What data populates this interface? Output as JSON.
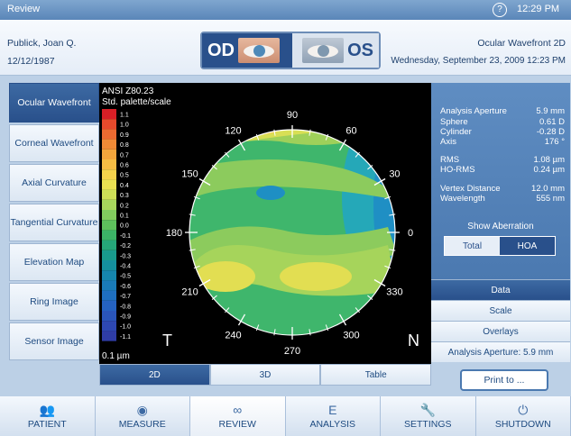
{
  "title": "Review",
  "clock": "12:29 PM",
  "patient": {
    "name": "Publick, Joan Q.",
    "dob": "12/12/1987"
  },
  "exam": {
    "title": "Ocular Wavefront 2D",
    "datetime": "Wednesday, September 23, 2009 12:23 PM"
  },
  "eye_select": {
    "od": "OD",
    "os": "OS"
  },
  "left_nav": [
    "Ocular Wavefront",
    "Corneal Wavefront",
    "Axial Curvature",
    "Tangential Curvature",
    "Elevation Map",
    "Ring Image",
    "Sensor Image"
  ],
  "map": {
    "scale_title": "ANSI Z80.23",
    "scale_subtitle": "Std. palette/scale",
    "scale_values": [
      "1.1",
      "1.0",
      "0.9",
      "0.8",
      "0.7",
      "0.6",
      "0.5",
      "0.4",
      "0.3",
      "0.2",
      "0.1",
      "0.0",
      "-0.1",
      "-0.2",
      "-0.3",
      "-0.4",
      "-0.5",
      "-0.6",
      "-0.7",
      "-0.8",
      "-0.9",
      "-1.0",
      "-1.1"
    ],
    "scale_colors": [
      "#d81f26",
      "#e64a2c",
      "#ec6a31",
      "#f08a36",
      "#f3a53c",
      "#f5bd44",
      "#f4d24c",
      "#e9df52",
      "#cddf57",
      "#a8d65c",
      "#82cb5e",
      "#5ec15c",
      "#3cb366",
      "#26a679",
      "#199a8c",
      "#15909e",
      "#1686ad",
      "#1a7bb8",
      "#1f6fbf",
      "#2562c0",
      "#2a55ba",
      "#2e48b2",
      "#2f3da6"
    ],
    "unit": "0.1 µm",
    "angles": [
      "0",
      "30",
      "60",
      "90",
      "120",
      "150",
      "180",
      "210",
      "240",
      "270",
      "300",
      "330"
    ],
    "left_marker": "T",
    "right_marker": "N"
  },
  "stats": [
    {
      "label": "Analysis Aperture",
      "value": "5.9 mm"
    },
    {
      "label": "Sphere",
      "value": "0.61 D"
    },
    {
      "label": "Cylinder",
      "value": "-0.28 D"
    },
    {
      "label": "Axis",
      "value": "176 °"
    },
    {
      "label": "RMS",
      "value": "1.08 µm"
    },
    {
      "label": "HO-RMS",
      "value": "0.24 µm"
    },
    {
      "label": "Vertex Distance",
      "value": "12.0 mm"
    },
    {
      "label": "Wavelength",
      "value": "555 nm"
    }
  ],
  "show_aberration": {
    "label": "Show Aberration",
    "total": "Total",
    "hoa": "HOA"
  },
  "data_menu": {
    "header": "Data",
    "items": [
      "Scale",
      "Overlays",
      "Analysis Aperture: 5.9 mm"
    ]
  },
  "view_tabs": [
    "2D",
    "3D",
    "Table"
  ],
  "print_label": "Print to ...",
  "bottom_nav": [
    {
      "label": "PATIENT",
      "icon": "patient-icon"
    },
    {
      "label": "MEASURE",
      "icon": "eye-icon"
    },
    {
      "label": "REVIEW",
      "icon": "review-icon"
    },
    {
      "label": "ANALYSIS",
      "icon": "eye-chart-icon"
    },
    {
      "label": "SETTINGS",
      "icon": "wrench-icon"
    },
    {
      "label": "SHUTDOWN",
      "icon": "power-icon"
    }
  ]
}
